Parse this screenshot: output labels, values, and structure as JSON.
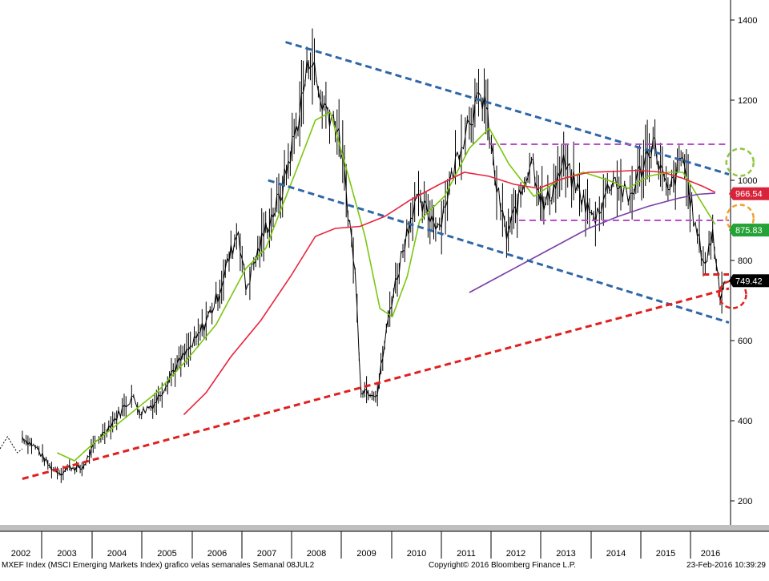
{
  "chart_data": {
    "type": "candlestick",
    "title": "",
    "xlabel": "",
    "ylabel": "",
    "ylim": [
      170,
      1450
    ],
    "y_ticks": [
      200,
      400,
      600,
      800,
      1000,
      1200,
      1400
    ],
    "x_ticks": [
      "2002",
      "2003",
      "2004",
      "2005",
      "2006",
      "2007",
      "2008",
      "2009",
      "2010",
      "2011",
      "2012",
      "2013",
      "2014",
      "2015",
      "2016"
    ],
    "grid": false,
    "price_path": [
      {
        "t": 2002.0,
        "v": 360
      },
      {
        "t": 2002.3,
        "v": 330
      },
      {
        "t": 2002.55,
        "v": 285
      },
      {
        "t": 2002.78,
        "v": 270
      },
      {
        "t": 2002.95,
        "v": 285
      },
      {
        "t": 2003.2,
        "v": 280
      },
      {
        "t": 2003.5,
        "v": 350
      },
      {
        "t": 2003.9,
        "v": 410
      },
      {
        "t": 2004.2,
        "v": 460
      },
      {
        "t": 2004.4,
        "v": 420
      },
      {
        "t": 2004.7,
        "v": 450
      },
      {
        "t": 2005.0,
        "v": 520
      },
      {
        "t": 2005.5,
        "v": 600
      },
      {
        "t": 2005.9,
        "v": 700
      },
      {
        "t": 2006.35,
        "v": 880
      },
      {
        "t": 2006.5,
        "v": 730
      },
      {
        "t": 2006.9,
        "v": 880
      },
      {
        "t": 2007.2,
        "v": 960
      },
      {
        "t": 2007.55,
        "v": 1150
      },
      {
        "t": 2007.8,
        "v": 1320
      },
      {
        "t": 2008.0,
        "v": 1200
      },
      {
        "t": 2008.3,
        "v": 1150
      },
      {
        "t": 2008.45,
        "v": 1050
      },
      {
        "t": 2008.7,
        "v": 770
      },
      {
        "t": 2008.82,
        "v": 480
      },
      {
        "t": 2009.15,
        "v": 470
      },
      {
        "t": 2009.4,
        "v": 680
      },
      {
        "t": 2009.7,
        "v": 850
      },
      {
        "t": 2009.9,
        "v": 950
      },
      {
        "t": 2010.4,
        "v": 890
      },
      {
        "t": 2010.8,
        "v": 1080
      },
      {
        "t": 2011.0,
        "v": 1160
      },
      {
        "t": 2011.3,
        "v": 1210
      },
      {
        "t": 2011.55,
        "v": 980
      },
      {
        "t": 2011.75,
        "v": 860
      },
      {
        "t": 2012.0,
        "v": 950
      },
      {
        "t": 2012.25,
        "v": 1060
      },
      {
        "t": 2012.5,
        "v": 930
      },
      {
        "t": 2012.9,
        "v": 1040
      },
      {
        "t": 2013.3,
        "v": 950
      },
      {
        "t": 2013.5,
        "v": 900
      },
      {
        "t": 2013.9,
        "v": 1010
      },
      {
        "t": 2014.2,
        "v": 950
      },
      {
        "t": 2014.7,
        "v": 1100
      },
      {
        "t": 2015.0,
        "v": 960
      },
      {
        "t": 2015.3,
        "v": 1060
      },
      {
        "t": 2015.55,
        "v": 880
      },
      {
        "t": 2015.75,
        "v": 790
      },
      {
        "t": 2015.9,
        "v": 870
      },
      {
        "t": 2016.05,
        "v": 720
      },
      {
        "t": 2016.15,
        "v": 749
      }
    ],
    "early_dashed_path": [
      {
        "t": 2001.55,
        "v": 330
      },
      {
        "t": 2001.7,
        "v": 360
      },
      {
        "t": 2001.8,
        "v": 340
      },
      {
        "t": 2001.9,
        "v": 320
      },
      {
        "t": 2002.0,
        "v": 330
      }
    ],
    "moving_averages": [
      {
        "name": "",
        "color": "#7ac70f",
        "points": [
          {
            "t": 2002.7,
            "v": 320
          },
          {
            "t": 2003.05,
            "v": 300
          },
          {
            "t": 2003.4,
            "v": 340
          },
          {
            "t": 2004.1,
            "v": 410
          },
          {
            "t": 2004.7,
            "v": 470
          },
          {
            "t": 2005.3,
            "v": 550
          },
          {
            "t": 2005.9,
            "v": 640
          },
          {
            "t": 2006.5,
            "v": 780
          },
          {
            "t": 2006.9,
            "v": 830
          },
          {
            "t": 2007.5,
            "v": 1020
          },
          {
            "t": 2007.9,
            "v": 1150
          },
          {
            "t": 2008.2,
            "v": 1170
          },
          {
            "t": 2008.5,
            "v": 1040
          },
          {
            "t": 2008.9,
            "v": 860
          },
          {
            "t": 2009.2,
            "v": 680
          },
          {
            "t": 2009.45,
            "v": 660
          },
          {
            "t": 2009.75,
            "v": 760
          },
          {
            "t": 2010.0,
            "v": 900
          },
          {
            "t": 2010.5,
            "v": 960
          },
          {
            "t": 2011.0,
            "v": 1080
          },
          {
            "t": 2011.4,
            "v": 1130
          },
          {
            "t": 2011.8,
            "v": 1040
          },
          {
            "t": 2012.3,
            "v": 960
          },
          {
            "t": 2012.8,
            "v": 1000
          },
          {
            "t": 2013.3,
            "v": 1020
          },
          {
            "t": 2013.8,
            "v": 1000
          },
          {
            "t": 2014.2,
            "v": 980
          },
          {
            "t": 2014.6,
            "v": 1010
          },
          {
            "t": 2015.0,
            "v": 1020
          },
          {
            "t": 2015.3,
            "v": 1020
          },
          {
            "t": 2015.6,
            "v": 960
          },
          {
            "t": 2015.95,
            "v": 890
          }
        ]
      },
      {
        "name": "",
        "color": "#e8243d",
        "points": [
          {
            "t": 2005.25,
            "v": 415
          },
          {
            "t": 2005.7,
            "v": 470
          },
          {
            "t": 2006.2,
            "v": 560
          },
          {
            "t": 2006.8,
            "v": 650
          },
          {
            "t": 2007.4,
            "v": 760
          },
          {
            "t": 2007.9,
            "v": 860
          },
          {
            "t": 2008.3,
            "v": 880
          },
          {
            "t": 2008.8,
            "v": 885
          },
          {
            "t": 2009.3,
            "v": 910
          },
          {
            "t": 2009.8,
            "v": 950
          },
          {
            "t": 2010.4,
            "v": 990
          },
          {
            "t": 2010.9,
            "v": 1020
          },
          {
            "t": 2011.4,
            "v": 1010
          },
          {
            "t": 2011.9,
            "v": 990
          },
          {
            "t": 2012.4,
            "v": 980
          },
          {
            "t": 2012.9,
            "v": 1005
          },
          {
            "t": 2013.4,
            "v": 1020
          },
          {
            "t": 2013.9,
            "v": 1022
          },
          {
            "t": 2014.4,
            "v": 1025
          },
          {
            "t": 2014.9,
            "v": 1020
          },
          {
            "t": 2015.3,
            "v": 1005
          },
          {
            "t": 2015.7,
            "v": 985
          },
          {
            "t": 2015.95,
            "v": 970
          }
        ]
      },
      {
        "name": "",
        "color": "#7a3fa8",
        "points": [
          {
            "t": 2011.0,
            "v": 720
          },
          {
            "t": 2011.6,
            "v": 760
          },
          {
            "t": 2012.2,
            "v": 800
          },
          {
            "t": 2012.8,
            "v": 840
          },
          {
            "t": 2013.4,
            "v": 880
          },
          {
            "t": 2014.0,
            "v": 910
          },
          {
            "t": 2014.6,
            "v": 935
          },
          {
            "t": 2015.2,
            "v": 955
          },
          {
            "t": 2015.6,
            "v": 965
          },
          {
            "t": 2015.95,
            "v": 968
          }
        ]
      }
    ],
    "trendlines": [
      {
        "kind": "resistance",
        "color": "#2f66a8",
        "from": {
          "t": 2007.3,
          "v": 1345
        },
        "to": {
          "t": 2016.8,
          "v": 1015
        }
      },
      {
        "kind": "channel-lower",
        "color": "#2f66a8",
        "from": {
          "t": 2006.95,
          "v": 1000
        },
        "to": {
          "t": 2016.8,
          "v": 645
        }
      },
      {
        "kind": "support",
        "color": "#e02020",
        "from": {
          "t": 2002.0,
          "v": 255
        },
        "to": {
          "t": 2016.8,
          "v": 730
        }
      },
      {
        "kind": "range-top",
        "color": "#b84fc9",
        "from": {
          "t": 2011.2,
          "v": 1090
        },
        "to": {
          "t": 2016.8,
          "v": 1090
        }
      },
      {
        "kind": "range-bottom",
        "color": "#b84fc9",
        "from": {
          "t": 2012.0,
          "v": 900
        },
        "to": {
          "t": 2016.8,
          "v": 900
        }
      },
      {
        "kind": "short-resistance",
        "color": "#e02020",
        "from": {
          "t": 2015.7,
          "v": 765
        },
        "to": {
          "t": 2016.3,
          "v": 765
        }
      }
    ],
    "markers": [
      {
        "shape": "circle",
        "color": "#8ec63f",
        "t": 2016.45,
        "v": 1045
      },
      {
        "shape": "circle",
        "color": "#f0a030",
        "t": 2016.45,
        "v": 905
      },
      {
        "shape": "circle",
        "color": "#e02020",
        "t": 2016.3,
        "v": 715
      }
    ],
    "price_labels": [
      {
        "text": "966.54",
        "value": 966.54,
        "color": "#d8243a"
      },
      {
        "text": "875.83",
        "value": 875.83,
        "color": "#24a235"
      },
      {
        "text": "749.42",
        "value": 749.42,
        "color": "#000000"
      }
    ]
  },
  "footer": {
    "left": "MXEF Index (MSCI Emerging Markets Index) grafico velas semanales  Semanal 08JUL2",
    "center": "Copyright© 2016 Bloomberg Finance L.P.",
    "right": "23-Feb-2016 10:39:29"
  }
}
